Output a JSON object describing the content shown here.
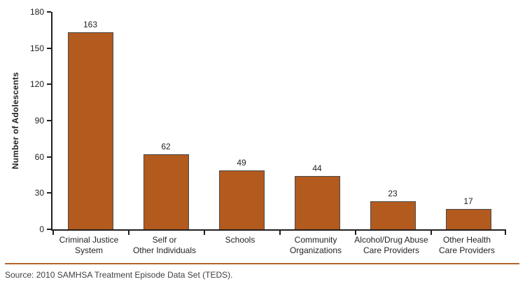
{
  "chart_data": {
    "type": "bar",
    "categories": [
      "Criminal Justice\nSystem",
      "Self or\nOther Individuals",
      "Schools",
      "Community\nOrganizations",
      "Alcohol/Drug Abuse\nCare Providers",
      "Other Health\nCare Providers"
    ],
    "values": [
      163,
      62,
      49,
      44,
      23,
      17
    ],
    "title": "",
    "xlabel": "",
    "ylabel": "Number of Adolescents",
    "ylim": [
      0,
      180
    ],
    "y_ticks": [
      0,
      30,
      60,
      90,
      120,
      150,
      180
    ],
    "grid": false,
    "legend": false,
    "bar_color": "#b35a1e",
    "bar_border_color": "#4a4a4a",
    "axis_color": "#231f20"
  },
  "source_note": "Source: 2010 SAMHSA Treatment Episode Data Set (TEDS).",
  "divider_color": "#b4662f"
}
